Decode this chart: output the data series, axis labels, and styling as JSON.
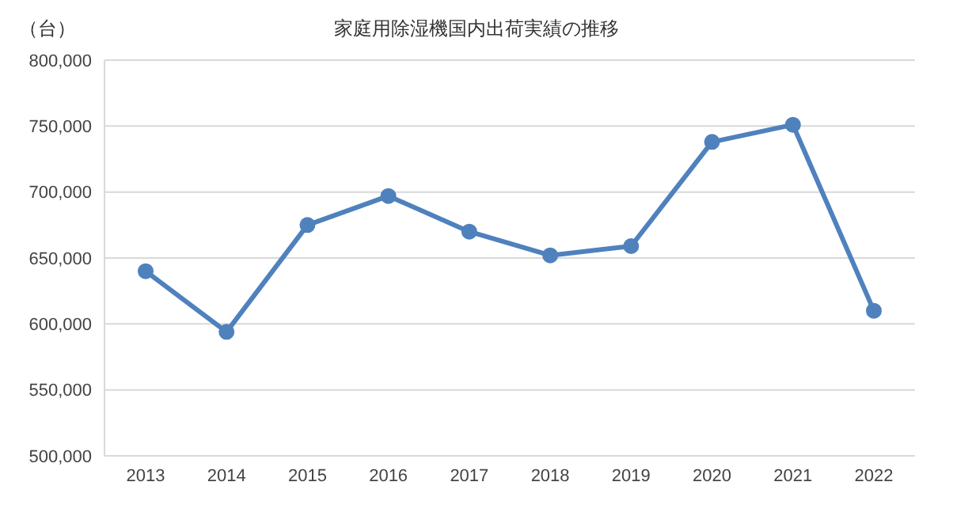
{
  "chart_data": {
    "type": "line",
    "title": "家庭用除湿機国内出荷実績の推移",
    "ylabel": "（台）",
    "categories": [
      "2013",
      "2014",
      "2015",
      "2016",
      "2017",
      "2018",
      "2019",
      "2020",
      "2021",
      "2022"
    ],
    "series": [
      {
        "color": "#4f81bd",
        "values": [
          640000,
          594000,
          675000,
          697000,
          670000,
          652000,
          659000,
          738000,
          751000,
          610000
        ]
      }
    ],
    "ylim": [
      500000,
      800000
    ],
    "yticks": [
      {
        "value": 500000,
        "label": "500,000"
      },
      {
        "value": 550000,
        "label": "550,000"
      },
      {
        "value": 600000,
        "label": "600,000"
      },
      {
        "value": 650000,
        "label": "650,000"
      },
      {
        "value": 700000,
        "label": "700,000"
      },
      {
        "value": 750000,
        "label": "750,000"
      },
      {
        "value": 800000,
        "label": "800,000"
      }
    ],
    "grid": "y",
    "legend": false,
    "marker": "circle",
    "line_style": "solid"
  }
}
